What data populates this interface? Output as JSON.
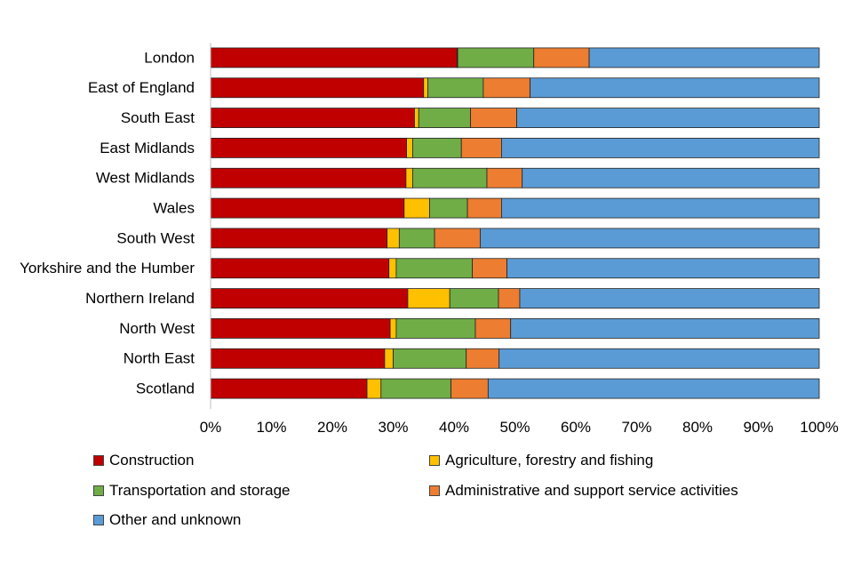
{
  "chart_data": {
    "type": "bar",
    "orientation": "horizontal",
    "stacked": true,
    "percent": true,
    "categories": [
      "London",
      "East of England",
      "South East",
      "East Midlands",
      "West Midlands",
      "Wales",
      "South West",
      "Yorkshire and the Humber",
      "Northern Ireland",
      "North West",
      "North East",
      "Scotland"
    ],
    "series": [
      {
        "name": "Construction",
        "color": "#C00000",
        "values": [
          40.5,
          35.0,
          33.5,
          32.2,
          32.1,
          31.8,
          29.0,
          29.3,
          32.4,
          29.5,
          28.6,
          25.7
        ]
      },
      {
        "name": "Agriculture, forestry and fishing",
        "color": "#FFC000",
        "values": [
          0.1,
          0.7,
          0.7,
          1.0,
          1.1,
          4.2,
          2.0,
          1.2,
          6.9,
          1.0,
          1.4,
          2.3
        ]
      },
      {
        "name": "Transportation and storage",
        "color": "#70AD47",
        "values": [
          12.5,
          9.1,
          8.5,
          8.0,
          12.2,
          6.2,
          5.8,
          12.5,
          8.0,
          13.0,
          12.0,
          11.5
        ]
      },
      {
        "name": "Administrative and support service activities",
        "color": "#ED7D31",
        "values": [
          9.1,
          7.7,
          7.6,
          6.6,
          5.8,
          5.6,
          7.5,
          5.7,
          3.5,
          5.8,
          5.4,
          6.1
        ]
      },
      {
        "name": "Other and unknown",
        "color": "#5B9BD5",
        "values": [
          37.8,
          47.5,
          49.7,
          52.2,
          48.8,
          52.2,
          55.7,
          51.3,
          49.2,
          50.7,
          52.6,
          54.4
        ]
      }
    ],
    "xlim": [
      0,
      100
    ],
    "xticks": [
      "0%",
      "10%",
      "20%",
      "30%",
      "40%",
      "50%",
      "60%",
      "70%",
      "80%",
      "90%",
      "100%"
    ],
    "grid": false,
    "legend_position": "bottom"
  }
}
